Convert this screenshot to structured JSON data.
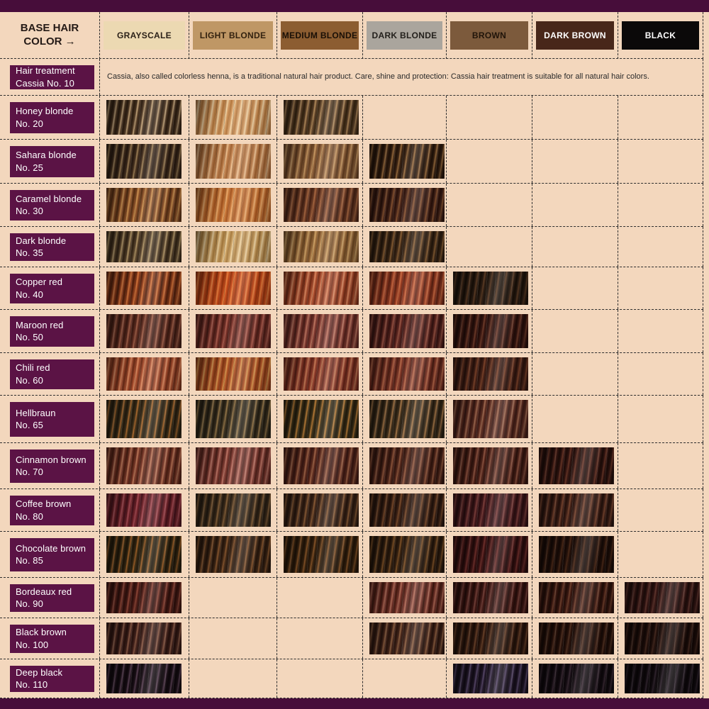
{
  "theme": {
    "page_bg": "#f3d7bd",
    "bar_color": "#470d3a",
    "label_bg": "#5b1345",
    "label_text": "#ffffff",
    "grid_line": "#2e2e2e",
    "heading_text": "#241a16",
    "description_text": "#2a2a2a"
  },
  "corner": {
    "label": "BASE HAIR COLOR →"
  },
  "columns": [
    {
      "label": "GRAYSCALE",
      "bg": "#ecd9b2",
      "text_color": "#2b2118"
    },
    {
      "label": "LIGHT BLONDE",
      "bg": "#bf9765",
      "text_color": "#33220f"
    },
    {
      "label": "MEDIUM BLONDE",
      "bg": "#8c5d31",
      "text_color": "#190f06"
    },
    {
      "label": "DARK BLONDE",
      "bg": "#aaa59d",
      "text_color": "#23201c"
    },
    {
      "label": "BROWN",
      "bg": "#7c5a3c",
      "text_color": "#201409"
    },
    {
      "label": "DARK BROWN",
      "bg": "#48271a",
      "text_color": "#ffffff"
    },
    {
      "label": "BLACK",
      "bg": "#0b0909",
      "text_color": "#ffffff"
    }
  ],
  "cassia_row": {
    "line1": "Hair treatment",
    "line2": "Cassia No. 10",
    "description": "Cassia, also called colorless henna, is a traditional natural hair product. Care, shine and protection: Cassia hair treatment is suitable for all natural hair colors."
  },
  "rows": [
    {
      "line1": "Honey blonde",
      "line2": "No. 20",
      "cells": [
        {
          "base": "#4f3824",
          "dark": "#2a1c10",
          "light": "#c6a77c"
        },
        {
          "base": "#d49c64",
          "dark": "#b1743a",
          "light": "#f2d6a8"
        },
        {
          "base": "#5c4028",
          "dark": "#33230f",
          "light": "#b68e5c"
        },
        null,
        null,
        null,
        null
      ]
    },
    {
      "line1": "Sahara blonde",
      "line2": "No. 25",
      "cells": [
        {
          "base": "#442f1e",
          "dark": "#251810",
          "light": "#a08258"
        },
        {
          "base": "#c28350",
          "dark": "#9d5f2e",
          "light": "#eec292"
        },
        {
          "base": "#8c5e38",
          "dark": "#603c20",
          "light": "#cc9d66"
        },
        {
          "base": "#3c2413",
          "dark": "#1f1108",
          "light": "#9e7040"
        },
        null,
        null,
        null
      ]
    },
    {
      "line1": "Caramel blonde",
      "line2": "No. 30",
      "cells": [
        {
          "base": "#8c5028",
          "dark": "#512c12",
          "light": "#d09653"
        },
        {
          "base": "#c97839",
          "dark": "#a1511d",
          "light": "#edad6e"
        },
        {
          "base": "#6e3c26",
          "dark": "#421f12",
          "light": "#ac6a42"
        },
        {
          "base": "#48261b",
          "dark": "#270f09",
          "light": "#8c5632"
        },
        null,
        null,
        null
      ]
    },
    {
      "line1": "Dark blonde",
      "line2": "No. 35",
      "cells": [
        {
          "base": "#57422b",
          "dark": "#2f2214",
          "light": "#b79b6a"
        },
        {
          "base": "#caa062",
          "dark": "#a4783c",
          "light": "#eed4a4"
        },
        {
          "base": "#9c6c3c",
          "dark": "#6c4722",
          "light": "#d2a76a"
        },
        {
          "base": "#402a18",
          "dark": "#23160b",
          "light": "#8d6236"
        },
        null,
        null,
        null
      ]
    },
    {
      "line1": "Copper red",
      "line2": "No. 40",
      "cells": [
        {
          "base": "#8c3c1b",
          "dark": "#4c1e0c",
          "light": "#d6783d"
        },
        {
          "base": "#c44a1b",
          "dark": "#92320e",
          "light": "#ea8240"
        },
        {
          "base": "#aa4c2d",
          "dark": "#702a15",
          "light": "#de8d64"
        },
        {
          "base": "#963c23",
          "dark": "#5e2213",
          "light": "#ce6e45"
        },
        {
          "base": "#2c1d13",
          "dark": "#150d06",
          "light": "#5d3c24"
        },
        null,
        null
      ]
    },
    {
      "line1": "Maroon red",
      "line2": "No. 50",
      "cells": [
        {
          "base": "#602d21",
          "dark": "#381810",
          "light": "#a3624a"
        },
        {
          "base": "#763129",
          "dark": "#481b15",
          "light": "#b26252"
        },
        {
          "base": "#803a31",
          "dark": "#4e1f19",
          "light": "#c27a64"
        },
        {
          "base": "#5c251f",
          "dark": "#351311",
          "light": "#9c5746"
        },
        {
          "base": "#3a1711",
          "dark": "#1f0b08",
          "light": "#703c2a"
        },
        null,
        null
      ]
    },
    {
      "line1": "Chili red",
      "line2": "No. 60",
      "cells": [
        {
          "base": "#a64c2d",
          "dark": "#682b17",
          "light": "#db8c62"
        },
        {
          "base": "#b25427",
          "dark": "#7e3513",
          "light": "#db9c52"
        },
        {
          "base": "#8e3c2b",
          "dark": "#5a2015",
          "light": "#c67c57"
        },
        {
          "base": "#7c3527",
          "dark": "#4b1d13",
          "light": "#b76a4a"
        },
        {
          "base": "#462117",
          "dark": "#27110b",
          "light": "#7e442a"
        },
        null,
        null
      ]
    },
    {
      "line1": "Hellbraun",
      "line2": "No. 65",
      "cells": [
        {
          "base": "#3e311b",
          "dark": "#21190d",
          "light": "#b26e31"
        },
        {
          "base": "#3c3221",
          "dark": "#201b11",
          "light": "#9c7c4c"
        },
        {
          "base": "#3e3219",
          "dark": "#211b0d",
          "light": "#c2823a"
        },
        {
          "base": "#40301d",
          "dark": "#231b0f",
          "light": "#aa7a4a"
        },
        {
          "base": "#5e2d21",
          "dark": "#371813",
          "light": "#a26c52"
        },
        null,
        null
      ]
    },
    {
      "line1": "Cinnamon brown",
      "line2": "No. 70",
      "cells": [
        {
          "base": "#763526",
          "dark": "#471d11",
          "light": "#be7a5a"
        },
        {
          "base": "#7e3a31",
          "dark": "#4c2019",
          "light": "#c27a6a"
        },
        {
          "base": "#5c2a1d",
          "dark": "#351511",
          "light": "#a26649"
        },
        {
          "base": "#50261b",
          "dark": "#2d130c",
          "light": "#945a3e"
        },
        {
          "base": "#4e2219",
          "dark": "#2b110b",
          "light": "#905642"
        },
        {
          "base": "#341511",
          "dark": "#1b0b07",
          "light": "#6c3828"
        },
        null
      ]
    },
    {
      "line1": "Coffee brown",
      "line2": "No. 80",
      "cells": [
        {
          "base": "#6c2127",
          "dark": "#40111a",
          "light": "#a64c55"
        },
        {
          "base": "#3e2d1b",
          "dark": "#211911",
          "light": "#88623b"
        },
        {
          "base": "#42291b",
          "dark": "#25150d",
          "light": "#8e5e37"
        },
        {
          "base": "#3c2215",
          "dark": "#20110b",
          "light": "#7e4e2d"
        },
        {
          "base": "#461a1d",
          "dark": "#270d0f",
          "light": "#7e403c"
        },
        {
          "base": "#402017",
          "dark": "#22100b",
          "light": "#7c4831"
        },
        null
      ]
    },
    {
      "line1": "Chocolate brown",
      "line2": "No. 85",
      "cells": [
        {
          "base": "#352913",
          "dark": "#1d1509",
          "light": "#a2622a"
        },
        {
          "base": "#402816",
          "dark": "#23140b",
          "light": "#8e5a31"
        },
        {
          "base": "#38230f",
          "dark": "#1e1207",
          "light": "#8a5629"
        },
        {
          "base": "#362211",
          "dark": "#1d1109",
          "light": "#805227"
        },
        {
          "base": "#3c1313",
          "dark": "#1f0909",
          "light": "#70302c"
        },
        {
          "base": "#24110a",
          "dark": "#130805",
          "light": "#4e2b19"
        },
        null
      ]
    },
    {
      "line1": "Bordeaux red",
      "line2": "No. 90",
      "cells": [
        {
          "base": "#4e1d17",
          "dark": "#2b0f0b",
          "light": "#904838"
        },
        null,
        null,
        {
          "base": "#703128",
          "dark": "#42190f",
          "light": "#b26c57"
        },
        {
          "base": "#401814",
          "dark": "#230c09",
          "light": "#76423a"
        },
        {
          "base": "#3c1811",
          "dark": "#200d07",
          "light": "#72422e"
        },
        {
          "base": "#341513",
          "dark": "#1b0b09",
          "light": "#60362e"
        }
      ]
    },
    {
      "line1": "Black brown",
      "line2": "No. 100",
      "cells": [
        {
          "base": "#42211b",
          "dark": "#25110d",
          "light": "#8c5c46"
        },
        null,
        null,
        {
          "base": "#46261b",
          "dark": "#27140d",
          "light": "#906242"
        },
        {
          "base": "#321a10",
          "dark": "#1b0e07",
          "light": "#6a4229"
        },
        {
          "base": "#28110a",
          "dark": "#150905",
          "light": "#543424"
        },
        {
          "base": "#200f0b",
          "dark": "#110705",
          "light": "#462a20"
        }
      ]
    },
    {
      "line1": "Deep black",
      "line2": "No. 110",
      "cells": [
        {
          "base": "#1a0f16",
          "dark": "#0d070b",
          "light": "#5a4154"
        },
        null,
        null,
        null,
        {
          "base": "#211728",
          "dark": "#110b15",
          "light": "#58486a"
        },
        {
          "base": "#150d13",
          "dark": "#0b0609",
          "light": "#3a2a34"
        },
        {
          "base": "#110b0f",
          "dark": "#090507",
          "light": "#30242e"
        }
      ]
    }
  ],
  "chart_data": {
    "type": "table",
    "title": "Hair treatment shades vs. base hair colors (swatch availability matrix)",
    "columns": [
      "GRAYSCALE",
      "LIGHT BLONDE",
      "MEDIUM BLONDE",
      "DARK BLONDE",
      "BROWN",
      "DARK BROWN",
      "BLACK"
    ],
    "rows": [
      {
        "label": "Hair treatment Cassia No. 10",
        "note": "suitable for all natural hair colors",
        "swatches": [
          0,
          0,
          0,
          0,
          0,
          0,
          0
        ]
      },
      {
        "label": "Honey blonde No. 20",
        "swatches": [
          1,
          1,
          1,
          0,
          0,
          0,
          0
        ]
      },
      {
        "label": "Sahara blonde No. 25",
        "swatches": [
          1,
          1,
          1,
          1,
          0,
          0,
          0
        ]
      },
      {
        "label": "Caramel blonde No. 30",
        "swatches": [
          1,
          1,
          1,
          1,
          0,
          0,
          0
        ]
      },
      {
        "label": "Dark blonde No. 35",
        "swatches": [
          1,
          1,
          1,
          1,
          0,
          0,
          0
        ]
      },
      {
        "label": "Copper red No. 40",
        "swatches": [
          1,
          1,
          1,
          1,
          1,
          0,
          0
        ]
      },
      {
        "label": "Maroon red No. 50",
        "swatches": [
          1,
          1,
          1,
          1,
          1,
          0,
          0
        ]
      },
      {
        "label": "Chili red No. 60",
        "swatches": [
          1,
          1,
          1,
          1,
          1,
          0,
          0
        ]
      },
      {
        "label": "Hellbraun No. 65",
        "swatches": [
          1,
          1,
          1,
          1,
          1,
          0,
          0
        ]
      },
      {
        "label": "Cinnamon brown No. 70",
        "swatches": [
          1,
          1,
          1,
          1,
          1,
          1,
          0
        ]
      },
      {
        "label": "Coffee brown No. 80",
        "swatches": [
          1,
          1,
          1,
          1,
          1,
          1,
          0
        ]
      },
      {
        "label": "Chocolate brown No. 85",
        "swatches": [
          1,
          1,
          1,
          1,
          1,
          1,
          0
        ]
      },
      {
        "label": "Bordeaux red No. 90",
        "swatches": [
          1,
          0,
          0,
          1,
          1,
          1,
          1
        ]
      },
      {
        "label": "Black brown No. 100",
        "swatches": [
          1,
          0,
          0,
          1,
          1,
          1,
          1
        ]
      },
      {
        "label": "Deep black No. 110",
        "swatches": [
          1,
          0,
          0,
          0,
          1,
          1,
          1
        ]
      }
    ]
  }
}
